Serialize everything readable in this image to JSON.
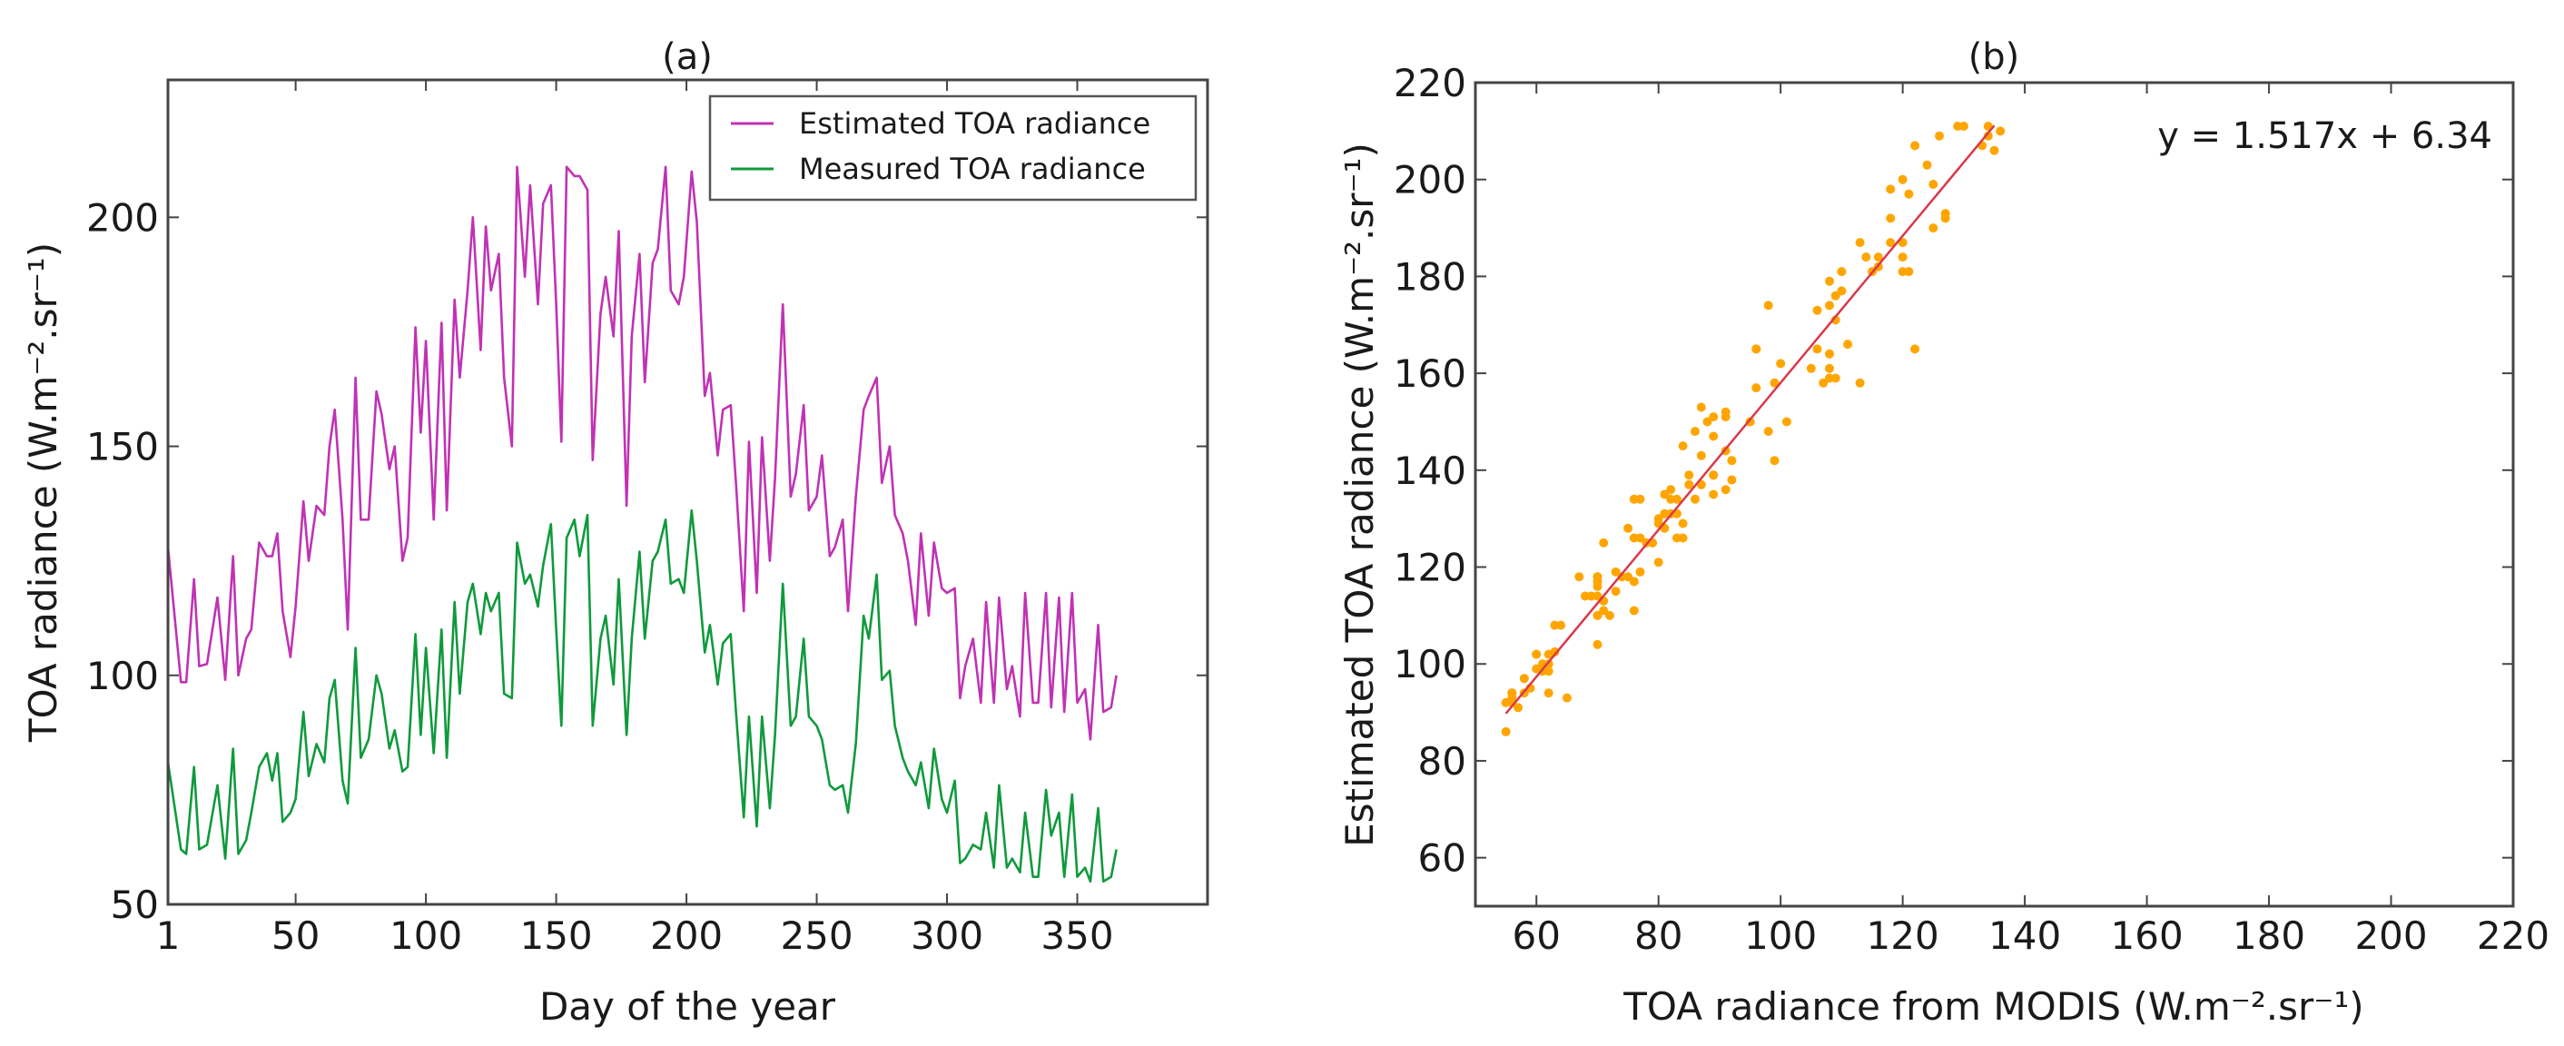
{
  "chart_data": [
    {
      "type": "line",
      "title": "(a)",
      "xlabel": "Day of the year",
      "ylabel": "TOA radiance (W.m⁻².sr⁻¹)",
      "xlim": [
        1,
        400
      ],
      "ylim": [
        50,
        230
      ],
      "xticks": [
        1,
        50,
        100,
        150,
        200,
        250,
        300,
        350
      ],
      "yticks": [
        50,
        100,
        150,
        200
      ],
      "grid": false,
      "legend_position": "top-right",
      "x": [
        1,
        6,
        8,
        11,
        13,
        16,
        20,
        23,
        26,
        28,
        31,
        33,
        36,
        39,
        41,
        43,
        45,
        48,
        50,
        53,
        55,
        58,
        61,
        63,
        65,
        68,
        70,
        73,
        75,
        78,
        81,
        83,
        86,
        88,
        91,
        93,
        96,
        98,
        100,
        103,
        106,
        108,
        111,
        113,
        116,
        118,
        121,
        123,
        125,
        128,
        130,
        133,
        135,
        138,
        140,
        143,
        145,
        148,
        150,
        152,
        154,
        157,
        159,
        162,
        164,
        167,
        169,
        172,
        174,
        177,
        179,
        182,
        184,
        187,
        189,
        192,
        194,
        197,
        199,
        202,
        204,
        207,
        209,
        212,
        214,
        217,
        219,
        222,
        224,
        227,
        229,
        232,
        234,
        237,
        240,
        242,
        245,
        247,
        250,
        252,
        255,
        257,
        260,
        262,
        265,
        268,
        270,
        273,
        275,
        278,
        280,
        283,
        285,
        288,
        290,
        293,
        295,
        298,
        300,
        303,
        305,
        307,
        310,
        313,
        315,
        318,
        320,
        323,
        325,
        328,
        330,
        333,
        335,
        338,
        340,
        343,
        345,
        348,
        350,
        353,
        355,
        358,
        360,
        363,
        365
      ],
      "series": [
        {
          "name": "Estimated TOA radiance",
          "color": "#c032b4",
          "values": [
            128,
            98.5,
            98.5,
            121,
            102,
            102.5,
            117,
            99,
            126,
            100,
            108,
            110,
            129,
            126,
            126,
            131,
            114,
            104,
            115,
            138,
            125,
            137,
            135,
            150,
            158,
            134,
            110,
            165,
            134,
            134,
            162,
            157,
            145,
            150,
            125,
            130,
            176,
            153,
            173,
            134,
            177,
            136,
            182,
            165,
            184,
            200,
            171,
            198,
            184,
            192,
            165,
            150,
            211,
            187,
            207,
            181,
            203,
            207,
            181,
            151,
            211,
            209,
            209,
            206,
            147,
            179,
            187,
            174,
            197,
            137,
            174,
            192,
            164,
            190,
            193,
            211,
            184,
            181,
            187,
            210,
            199,
            161,
            166,
            148,
            158,
            159,
            142,
            114,
            151,
            118,
            152,
            125,
            143,
            181,
            139,
            144,
            159,
            136,
            139,
            148,
            126,
            128,
            134,
            114,
            139,
            158,
            161,
            165,
            142,
            150,
            135,
            131,
            125,
            111,
            131,
            113,
            129,
            119,
            118,
            119,
            95,
            102,
            108,
            94,
            116,
            94,
            117,
            97,
            102,
            91,
            118,
            94,
            94,
            118,
            93,
            117,
            92,
            118,
            94,
            97,
            86,
            111,
            92,
            93,
            100
          ]
        },
        {
          "name": "Measured TOA radiance",
          "color": "#0f9a3c",
          "values": [
            81,
            62,
            61,
            80,
            62,
            63,
            76,
            60,
            84,
            61,
            64,
            70,
            80,
            83,
            77,
            83,
            68,
            70,
            73,
            92,
            78,
            85,
            81,
            95,
            99,
            77,
            72,
            106,
            82,
            86,
            100,
            96,
            84,
            88,
            79,
            80,
            109,
            87,
            106,
            83,
            110,
            82,
            116,
            96,
            116,
            120,
            109,
            118,
            114,
            118,
            96,
            95,
            129,
            120,
            122,
            115,
            124,
            133,
            110,
            89,
            130,
            134,
            126,
            135,
            89,
            108,
            113,
            98,
            121,
            87,
            108,
            127,
            108,
            125,
            127,
            134,
            120,
            121,
            118,
            136,
            125,
            105,
            111,
            98,
            107,
            109,
            92,
            69,
            91,
            67,
            91,
            71,
            87,
            120,
            89,
            91,
            108,
            91,
            89,
            86,
            76,
            75,
            76,
            70,
            85,
            113,
            108,
            122,
            99,
            101,
            89,
            82,
            79,
            76,
            81,
            71,
            84,
            73,
            70,
            77,
            59,
            60,
            63,
            62,
            70,
            58,
            76,
            58,
            60,
            57,
            70,
            56,
            56,
            75,
            65,
            70,
            56,
            74,
            56,
            58,
            55,
            71,
            55,
            56,
            62
          ]
        }
      ]
    },
    {
      "type": "scatter",
      "title": "(b)",
      "xlabel": "TOA radiance from MODIS (W.m⁻².sr⁻¹)",
      "ylabel": "Estimated TOA radiance (W.m⁻².sr⁻¹)",
      "xlim": [
        50,
        220
      ],
      "ylim": [
        50,
        220
      ],
      "xticks": [
        60,
        80,
        100,
        120,
        140,
        160,
        180,
        200,
        220
      ],
      "yticks": [
        60,
        80,
        100,
        120,
        140,
        160,
        180,
        200,
        220
      ],
      "grid": false,
      "points_source": "x = Measured TOA radiance, y = Estimated TOA radiance (same days as panel a)",
      "point_color": "#ffa500",
      "fit": {
        "equation": "y = 1.517x + 6.34",
        "slope": 1.517,
        "intercept": 6.34,
        "x_range": [
          55,
          135
        ],
        "color": "#d9394a"
      }
    }
  ]
}
